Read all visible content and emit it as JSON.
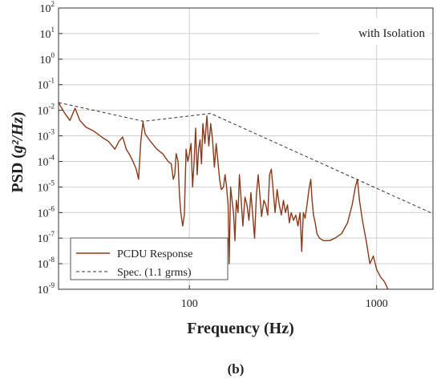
{
  "chart_data": {
    "type": "line",
    "xlabel": "Frequency (Hz)",
    "ylabel_prefix": "PSD (",
    "ylabel_math": "g²/Hz",
    "ylabel_suffix": ")",
    "x_scale": "log",
    "y_scale": "log",
    "xlim": [
      20,
      2000
    ],
    "ylim": [
      1e-09,
      100
    ],
    "x_ticks": [
      {
        "value": 100,
        "label": "100"
      },
      {
        "value": 1000,
        "label": "1000"
      }
    ],
    "y_ticks": [
      {
        "exp": 2,
        "label": "10",
        "sup": "2"
      },
      {
        "exp": 1,
        "label": "10",
        "sup": "1"
      },
      {
        "exp": 0,
        "label": "10",
        "sup": "0"
      },
      {
        "exp": -1,
        "label": "10",
        "sup": "-1"
      },
      {
        "exp": -2,
        "label": "10",
        "sup": "-2"
      },
      {
        "exp": -3,
        "label": "10",
        "sup": "-3"
      },
      {
        "exp": -4,
        "label": "10",
        "sup": "-4"
      },
      {
        "exp": -5,
        "label": "10",
        "sup": "-5"
      },
      {
        "exp": -6,
        "label": "10",
        "sup": "-6"
      },
      {
        "exp": -7,
        "label": "10",
        "sup": "-7"
      },
      {
        "exp": -8,
        "label": "10",
        "sup": "-8"
      },
      {
        "exp": -9,
        "label": "10",
        "sup": "-9"
      }
    ],
    "grid": true,
    "annotation": "with Isolation",
    "panel_label": "(b)",
    "legend_position": "lower-left",
    "series": [
      {
        "name": "PCDU Response",
        "style": "solid",
        "color": "#8a3a1a",
        "points": [
          [
            20,
            0.02
          ],
          [
            21.5,
            0.008
          ],
          [
            23,
            0.004
          ],
          [
            24.5,
            0.012
          ],
          [
            26,
            0.004
          ],
          [
            28,
            0.0022
          ],
          [
            31,
            0.0015
          ],
          [
            34,
            0.0009
          ],
          [
            37,
            0.0006
          ],
          [
            40,
            0.0003
          ],
          [
            42,
            0.0006
          ],
          [
            44,
            0.0009
          ],
          [
            46,
            0.0003
          ],
          [
            48,
            0.00018
          ],
          [
            50,
            0.0001
          ],
          [
            52,
            5e-05
          ],
          [
            53.5,
            2e-05
          ],
          [
            55,
            0.0006
          ],
          [
            56.5,
            0.0035
          ],
          [
            58,
            0.0012
          ],
          [
            62,
            0.0006
          ],
          [
            67,
            0.0003
          ],
          [
            72,
            0.0002
          ],
          [
            77,
            0.0001
          ],
          [
            80,
            8e-05
          ],
          [
            82,
            2e-05
          ],
          [
            83.5,
            3e-05
          ],
          [
            85,
            0.0002
          ],
          [
            87,
            0.0001
          ],
          [
            88.5,
            5e-06
          ],
          [
            90,
            1e-06
          ],
          [
            92,
            3e-07
          ],
          [
            94,
            8e-07
          ],
          [
            96,
            0.0003
          ],
          [
            98,
            0.0001
          ],
          [
            100,
            0.0002
          ],
          [
            102,
            0.0005
          ],
          [
            104,
            1e-05
          ],
          [
            106,
            0.0001
          ],
          [
            108,
            0.002
          ],
          [
            110,
            3e-05
          ],
          [
            112,
            0.0003
          ],
          [
            114,
            0.0007
          ],
          [
            116,
            8e-05
          ],
          [
            118,
            0.003
          ],
          [
            121,
            0.0005
          ],
          [
            124,
            0.006
          ],
          [
            127,
            0.0004
          ],
          [
            130,
            0.003
          ],
          [
            133,
            0.0007
          ],
          [
            136,
            6e-05
          ],
          [
            139,
            0.0005
          ],
          [
            142,
            0.0001
          ],
          [
            145,
            2e-05
          ],
          [
            148,
            8e-06
          ],
          [
            152,
            1e-05
          ],
          [
            155,
            3e-05
          ],
          [
            158,
            1e-05
          ],
          [
            161,
            2e-06
          ],
          [
            163,
            1e-08
          ],
          [
            166,
            1e-05
          ],
          [
            169,
            3e-06
          ],
          [
            172,
            1e-06
          ],
          [
            175,
            8e-08
          ],
          [
            178,
            3e-06
          ],
          [
            182,
            1e-06
          ],
          [
            185,
            3e-05
          ],
          [
            189,
            3e-06
          ],
          [
            193,
            3e-07
          ],
          [
            198,
            4e-06
          ],
          [
            203,
            2e-06
          ],
          [
            208,
            5e-07
          ],
          [
            213,
            6e-06
          ],
          [
            218,
            8e-07
          ],
          [
            223,
            1e-07
          ],
          [
            228,
            5e-06
          ],
          [
            233,
            3e-05
          ],
          [
            238,
            5e-06
          ],
          [
            243,
            7e-07
          ],
          [
            250,
            3e-06
          ],
          [
            256,
            2e-06
          ],
          [
            262,
            8e-07
          ],
          [
            268,
            3e-05
          ],
          [
            274,
            5e-05
          ],
          [
            280,
            8e-06
          ],
          [
            287,
            1e-06
          ],
          [
            294,
            8e-06
          ],
          [
            302,
            2e-06
          ],
          [
            310,
            8e-07
          ],
          [
            318,
            3e-06
          ],
          [
            326,
            1e-06
          ],
          [
            334,
            2e-06
          ],
          [
            342,
            4e-07
          ],
          [
            350,
            1e-06
          ],
          [
            360,
            5e-07
          ],
          [
            370,
            8e-07
          ],
          [
            380,
            3e-07
          ],
          [
            390,
            1e-06
          ],
          [
            398,
            3e-08
          ],
          [
            406,
            1e-06
          ],
          [
            415,
            6e-07
          ],
          [
            425,
            2e-06
          ],
          [
            435,
            8e-06
          ],
          [
            445,
            2e-05
          ],
          [
            452,
            3e-06
          ],
          [
            460,
            8e-07
          ],
          [
            470,
            4e-07
          ],
          [
            480,
            1.5e-07
          ],
          [
            495,
            1e-07
          ],
          [
            520,
            8e-08
          ],
          [
            560,
            8e-08
          ],
          [
            600,
            1e-07
          ],
          [
            650,
            1.5e-07
          ],
          [
            700,
            4e-07
          ],
          [
            740,
            2e-06
          ],
          [
            770,
            1e-05
          ],
          [
            790,
            2e-05
          ],
          [
            810,
            3e-06
          ],
          [
            840,
            5e-07
          ],
          [
            880,
            8e-08
          ],
          [
            920,
            1e-08
          ],
          [
            960,
            2e-08
          ],
          [
            1000,
            6e-09
          ],
          [
            1050,
            3e-09
          ],
          [
            1100,
            2e-09
          ],
          [
            1150,
            1e-09
          ],
          [
            1200,
            7e-10
          ],
          [
            1260,
            1e-09
          ],
          [
            1320,
            6e-10
          ],
          [
            1400,
            8e-10
          ]
        ]
      },
      {
        "name": "Spec. (1.1 grms)",
        "style": "dashed",
        "color": "#333333",
        "points": [
          [
            20,
            0.02
          ],
          [
            57,
            0.0037
          ],
          [
            130,
            0.0075
          ],
          [
            2000,
            9e-07
          ]
        ]
      }
    ]
  }
}
